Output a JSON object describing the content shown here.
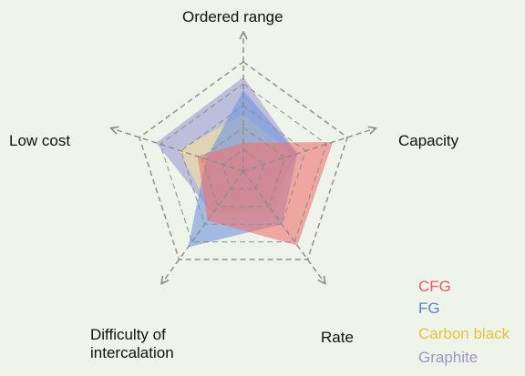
{
  "chart_data": {
    "type": "radar",
    "axes": [
      "Ordered range",
      "Capacity",
      "Rate",
      "Difficulty of\nintercalation",
      "Low cost"
    ],
    "rmax": 5,
    "series": [
      {
        "name": "Graphite",
        "color": "#a8a6d6",
        "values": [
          4.3,
          2.6,
          2.0,
          2.4,
          4.2
        ]
      },
      {
        "name": "Carbon black",
        "color": "#f5e49a",
        "values": [
          2.6,
          2.4,
          2.4,
          2.4,
          3.1
        ]
      },
      {
        "name": "FG",
        "color": "#6f95dd",
        "values": [
          3.7,
          2.6,
          3.0,
          4.3,
          1.8
        ]
      },
      {
        "name": "CFG",
        "color": "#f07070",
        "values": [
          1.3,
          4.3,
          4.2,
          2.8,
          2.2
        ]
      }
    ],
    "legend": [
      {
        "label": "CFG",
        "color": "#e35f5f"
      },
      {
        "label": "FG",
        "color": "#5b83c9"
      },
      {
        "label": "Carbon black",
        "color": "#e9c23a"
      },
      {
        "label": "Graphite",
        "color": "#9a98c8"
      }
    ],
    "grid_levels": [
      1,
      2,
      3,
      4,
      5
    ]
  }
}
